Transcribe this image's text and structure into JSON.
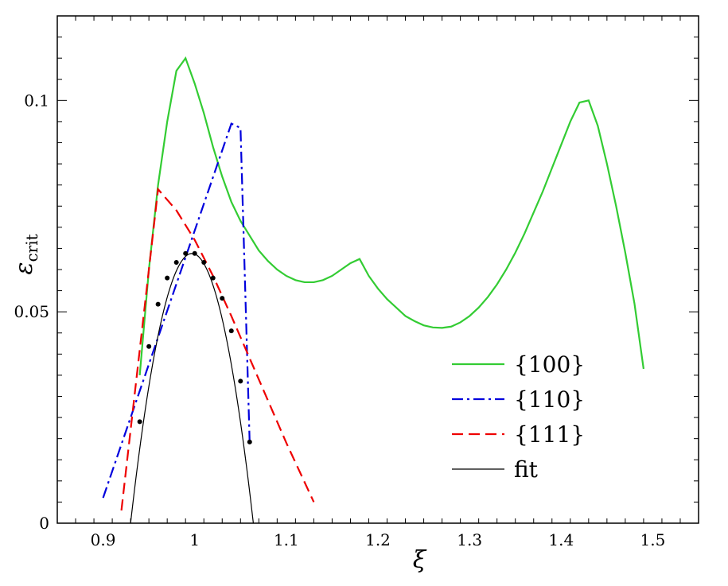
{
  "chart_data": {
    "type": "line",
    "title": "",
    "xlabel": "ξ",
    "ylabel_main": "ε",
    "ylabel_sub": "crit",
    "xlim": [
      0.85,
      1.55
    ],
    "ylim": [
      0,
      0.12
    ],
    "x_ticks": [
      0.9,
      1.0,
      1.1,
      1.2,
      1.3,
      1.4,
      1.5
    ],
    "x_tick_labels": [
      "0.9",
      "1",
      "1.1",
      "1.2",
      "1.3",
      "1.4",
      "1.5"
    ],
    "y_ticks": [
      0,
      0.05,
      0.1
    ],
    "y_tick_labels": [
      "0",
      "0.05",
      "0.1"
    ],
    "grid": false,
    "legend_position": "lower-right",
    "series": [
      {
        "name": "{100}",
        "color": "#33cc33",
        "dash": "solid",
        "x": [
          0.94,
          0.95,
          0.96,
          0.97,
          0.98,
          0.99,
          1.0,
          1.01,
          1.02,
          1.03,
          1.04,
          1.05,
          1.06,
          1.07,
          1.08,
          1.09,
          1.1,
          1.11,
          1.12,
          1.13,
          1.14,
          1.15,
          1.16,
          1.17,
          1.18,
          1.19,
          1.2,
          1.21,
          1.22,
          1.23,
          1.24,
          1.25,
          1.26,
          1.27,
          1.28,
          1.29,
          1.3,
          1.31,
          1.32,
          1.33,
          1.34,
          1.35,
          1.36,
          1.37,
          1.38,
          1.39,
          1.4,
          1.41,
          1.42,
          1.43,
          1.44,
          1.45,
          1.46,
          1.47,
          1.48,
          1.49
        ],
        "y": [
          0.035,
          0.06,
          0.08,
          0.095,
          0.107,
          0.11,
          0.104,
          0.097,
          0.089,
          0.082,
          0.076,
          0.0715,
          0.068,
          0.0645,
          0.062,
          0.06,
          0.0585,
          0.0575,
          0.057,
          0.057,
          0.0575,
          0.0585,
          0.06,
          0.0615,
          0.0625,
          0.0585,
          0.0555,
          0.053,
          0.051,
          0.049,
          0.0478,
          0.0468,
          0.0463,
          0.0462,
          0.0465,
          0.0475,
          0.049,
          0.051,
          0.0535,
          0.0565,
          0.06,
          0.064,
          0.0685,
          0.0735,
          0.0785,
          0.084,
          0.0895,
          0.095,
          0.0995,
          0.1,
          0.094,
          0.085,
          0.075,
          0.064,
          0.052,
          0.0365
        ]
      },
      {
        "name": "{110}",
        "color": "#0000dd",
        "dash": "dashdot",
        "x": [
          0.9,
          1.04,
          1.05,
          1.06
        ],
        "y": [
          0.006,
          0.0945,
          0.0935,
          0.019
        ]
      },
      {
        "name": "{111}",
        "color": "#ee0000",
        "dash": "dashed",
        "x": [
          0.92,
          0.96,
          0.98,
          1.0,
          1.02,
          1.04,
          1.06,
          1.08,
          1.1,
          1.13
        ],
        "y": [
          0.003,
          0.079,
          0.074,
          0.067,
          0.0585,
          0.049,
          0.039,
          0.029,
          0.019,
          0.005
        ]
      },
      {
        "name": "fit",
        "color": "#000000",
        "dash": "solid",
        "kind": "parabola",
        "peak_x": 0.997,
        "peak_y": 0.0638,
        "x_range": [
          0.93,
          1.067
        ]
      },
      {
        "name": "fit points",
        "color": "#000000",
        "kind": "points",
        "x": [
          0.94,
          0.95,
          0.96,
          0.97,
          0.98,
          0.99,
          1.0,
          1.01,
          1.02,
          1.03,
          1.04,
          1.05,
          1.06
        ],
        "y": [
          0.024,
          0.0418,
          0.0518,
          0.058,
          0.0617,
          0.0638,
          0.0638,
          0.0617,
          0.058,
          0.0532,
          0.0455,
          0.0336,
          0.0192
        ]
      }
    ]
  }
}
